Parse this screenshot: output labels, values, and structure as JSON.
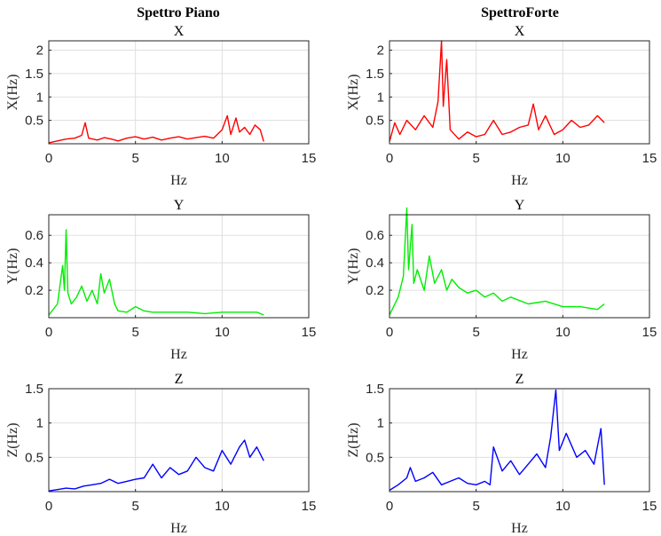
{
  "column_titles": [
    "Spettro Piano",
    "SpettroForte"
  ],
  "chart_data": [
    {
      "type": "line",
      "col": 0,
      "row": 0,
      "title": "X",
      "xlabel": "Hz",
      "ylabel": "X(Hz)",
      "xlim": [
        0,
        15
      ],
      "ylim": [
        0,
        2.2
      ],
      "xticks": [
        0,
        5,
        10,
        15
      ],
      "yticks": [
        0.5,
        1,
        1.5,
        2
      ],
      "xtick_labels": [
        "0",
        "5",
        "10",
        "15"
      ],
      "ytick_labels": [
        "0.5",
        "1",
        "1.5",
        "2"
      ],
      "grid": true,
      "color": "#ff0000",
      "series": [
        {
          "x": [
            0,
            0.5,
            1.0,
            1.5,
            1.9,
            2.1,
            2.3,
            2.8,
            3.2,
            3.6,
            4.0,
            4.5,
            5.0,
            5.5,
            6.0,
            6.5,
            7.0,
            7.5,
            8.0,
            8.5,
            9.0,
            9.5,
            10.0,
            10.3,
            10.5,
            10.8,
            11.0,
            11.3,
            11.6,
            11.9,
            12.2,
            12.4
          ],
          "y": [
            0.02,
            0.06,
            0.1,
            0.12,
            0.18,
            0.45,
            0.12,
            0.08,
            0.13,
            0.1,
            0.06,
            0.12,
            0.15,
            0.1,
            0.14,
            0.08,
            0.12,
            0.15,
            0.1,
            0.13,
            0.16,
            0.12,
            0.3,
            0.6,
            0.2,
            0.55,
            0.25,
            0.35,
            0.2,
            0.4,
            0.3,
            0.05
          ]
        }
      ]
    },
    {
      "type": "line",
      "col": 1,
      "row": 0,
      "title": "X",
      "xlabel": "Hz",
      "ylabel": "X(Hz)",
      "xlim": [
        0,
        15
      ],
      "ylim": [
        0,
        2.2
      ],
      "xticks": [
        0,
        5,
        10,
        15
      ],
      "yticks": [
        0.5,
        1,
        1.5,
        2
      ],
      "xtick_labels": [
        "0",
        "5",
        "10",
        "15"
      ],
      "ytick_labels": [
        "0.5",
        "1",
        "1.5",
        "2"
      ],
      "grid": true,
      "color": "#ff0000",
      "series": [
        {
          "x": [
            0,
            0.3,
            0.6,
            1.0,
            1.5,
            2.0,
            2.5,
            2.8,
            3.0,
            3.1,
            3.3,
            3.5,
            4.0,
            4.5,
            5.0,
            5.5,
            6.0,
            6.5,
            7.0,
            7.5,
            8.0,
            8.3,
            8.6,
            9.0,
            9.5,
            10.0,
            10.5,
            11.0,
            11.5,
            12.0,
            12.4
          ],
          "y": [
            0.05,
            0.45,
            0.2,
            0.5,
            0.3,
            0.6,
            0.35,
            0.9,
            2.2,
            0.8,
            1.8,
            0.3,
            0.1,
            0.25,
            0.15,
            0.2,
            0.5,
            0.2,
            0.25,
            0.35,
            0.4,
            0.85,
            0.3,
            0.6,
            0.2,
            0.3,
            0.5,
            0.35,
            0.4,
            0.6,
            0.45
          ]
        }
      ]
    },
    {
      "type": "line",
      "col": 0,
      "row": 1,
      "title": "Y",
      "xlabel": "Hz",
      "ylabel": "Y(Hz)",
      "xlim": [
        0,
        15
      ],
      "ylim": [
        0,
        0.75
      ],
      "xticks": [
        0,
        5,
        10,
        15
      ],
      "yticks": [
        0.2,
        0.4,
        0.6
      ],
      "xtick_labels": [
        "0",
        "5",
        "10",
        "15"
      ],
      "ytick_labels": [
        "0.2",
        "0.4",
        "0.6"
      ],
      "grid": true,
      "color": "#00ee00",
      "series": [
        {
          "x": [
            0,
            0.5,
            0.8,
            0.9,
            1.0,
            1.1,
            1.3,
            1.6,
            1.9,
            2.2,
            2.5,
            2.8,
            3.0,
            3.2,
            3.5,
            3.8,
            4.0,
            4.5,
            5.0,
            5.5,
            6.0,
            7.0,
            8.0,
            9.0,
            10.0,
            11.0,
            12.0,
            12.4
          ],
          "y": [
            0.02,
            0.1,
            0.38,
            0.2,
            0.64,
            0.18,
            0.1,
            0.15,
            0.23,
            0.12,
            0.2,
            0.1,
            0.32,
            0.18,
            0.28,
            0.1,
            0.05,
            0.04,
            0.08,
            0.05,
            0.04,
            0.04,
            0.04,
            0.03,
            0.04,
            0.04,
            0.04,
            0.02
          ]
        }
      ]
    },
    {
      "type": "line",
      "col": 1,
      "row": 1,
      "title": "Y",
      "xlabel": "Hz",
      "ylabel": "Y(Hz)",
      "xlim": [
        0,
        15
      ],
      "ylim": [
        0,
        0.75
      ],
      "xticks": [
        0,
        5,
        10,
        15
      ],
      "yticks": [
        0.2,
        0.4,
        0.6
      ],
      "xtick_labels": [
        "0",
        "5",
        "10",
        "15"
      ],
      "ytick_labels": [
        "0.2",
        "0.4",
        "0.6"
      ],
      "grid": true,
      "color": "#00ee00",
      "series": [
        {
          "x": [
            0,
            0.5,
            0.8,
            1.0,
            1.1,
            1.3,
            1.4,
            1.6,
            2.0,
            2.3,
            2.6,
            3.0,
            3.3,
            3.6,
            4.0,
            4.5,
            5.0,
            5.5,
            6.0,
            6.5,
            7.0,
            8.0,
            9.0,
            10.0,
            11.0,
            12.0,
            12.4
          ],
          "y": [
            0.02,
            0.15,
            0.3,
            0.8,
            0.35,
            0.68,
            0.25,
            0.35,
            0.2,
            0.45,
            0.25,
            0.35,
            0.2,
            0.28,
            0.22,
            0.18,
            0.2,
            0.15,
            0.18,
            0.12,
            0.15,
            0.1,
            0.12,
            0.08,
            0.08,
            0.06,
            0.1
          ]
        }
      ]
    },
    {
      "type": "line",
      "col": 0,
      "row": 2,
      "title": "Z",
      "xlabel": "Hz",
      "ylabel": "Z(Hz)",
      "xlim": [
        0,
        15
      ],
      "ylim": [
        0,
        1.5
      ],
      "xticks": [
        0,
        5,
        10,
        15
      ],
      "yticks": [
        0.5,
        1,
        1.5
      ],
      "xtick_labels": [
        "0",
        "5",
        "10",
        "15"
      ],
      "ytick_labels": [
        "0.5",
        "1",
        "1.5"
      ],
      "grid": true,
      "color": "#0000ff",
      "series": [
        {
          "x": [
            0,
            0.5,
            1.0,
            1.5,
            2.0,
            2.5,
            3.0,
            3.5,
            4.0,
            4.5,
            5.0,
            5.5,
            6.0,
            6.5,
            7.0,
            7.5,
            8.0,
            8.5,
            9.0,
            9.5,
            10.0,
            10.5,
            11.0,
            11.3,
            11.6,
            12.0,
            12.4
          ],
          "y": [
            0.01,
            0.03,
            0.05,
            0.04,
            0.08,
            0.1,
            0.12,
            0.18,
            0.12,
            0.15,
            0.18,
            0.2,
            0.4,
            0.2,
            0.35,
            0.25,
            0.3,
            0.5,
            0.35,
            0.3,
            0.6,
            0.4,
            0.65,
            0.75,
            0.5,
            0.65,
            0.45
          ]
        }
      ]
    },
    {
      "type": "line",
      "col": 1,
      "row": 2,
      "title": "Z",
      "xlabel": "Hz",
      "ylabel": "Z(Hz)",
      "xlim": [
        0,
        15
      ],
      "ylim": [
        0,
        1.5
      ],
      "xticks": [
        0,
        5,
        10,
        15
      ],
      "yticks": [
        0.5,
        1,
        1.5
      ],
      "xtick_labels": [
        "0",
        "5",
        "10",
        "15"
      ],
      "ytick_labels": [
        "0.5",
        "1",
        "1.5"
      ],
      "grid": true,
      "color": "#0000ff",
      "series": [
        {
          "x": [
            0,
            0.5,
            1.0,
            1.2,
            1.5,
            2.0,
            2.5,
            3.0,
            3.5,
            4.0,
            4.5,
            5.0,
            5.5,
            5.8,
            6.0,
            6.5,
            7.0,
            7.5,
            8.0,
            8.5,
            9.0,
            9.3,
            9.6,
            9.8,
            10.2,
            10.8,
            11.3,
            11.8,
            12.2,
            12.4
          ],
          "y": [
            0.02,
            0.1,
            0.2,
            0.35,
            0.15,
            0.2,
            0.28,
            0.1,
            0.15,
            0.2,
            0.12,
            0.1,
            0.15,
            0.1,
            0.65,
            0.3,
            0.45,
            0.25,
            0.4,
            0.55,
            0.35,
            0.8,
            1.48,
            0.6,
            0.85,
            0.5,
            0.6,
            0.4,
            0.92,
            0.1
          ]
        }
      ]
    }
  ]
}
